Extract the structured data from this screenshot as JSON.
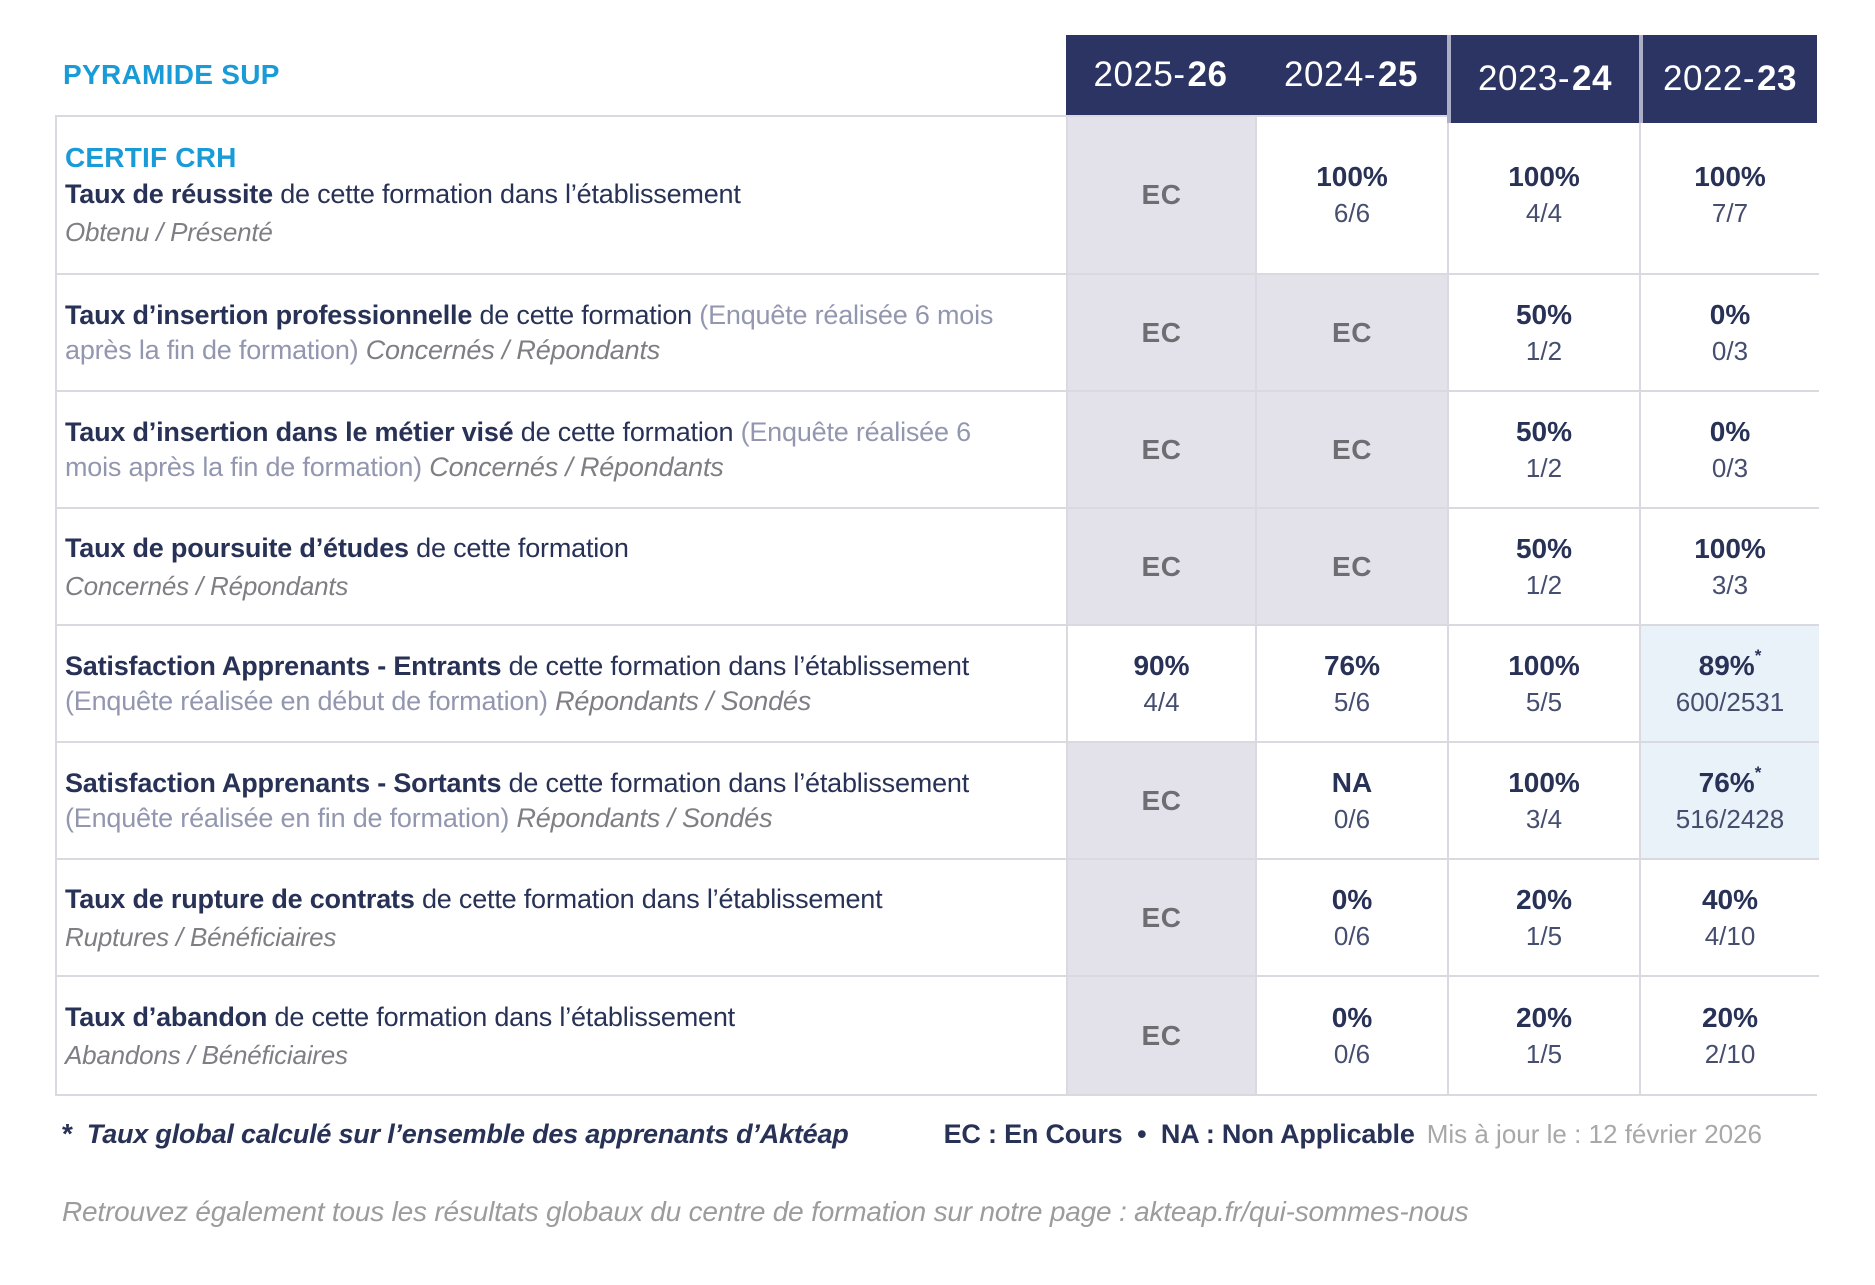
{
  "brand": "PYRAMIDE SUP",
  "years": [
    {
      "prefix": "2025-",
      "bold": "26"
    },
    {
      "prefix": "2024-",
      "bold": "25"
    },
    {
      "prefix": "2023-",
      "bold": "24"
    },
    {
      "prefix": "2022-",
      "bold": "23"
    }
  ],
  "table": {
    "rows": [
      {
        "heading": "CERTIF CRH",
        "title": "Taux de réussite",
        "desc": "de cette formation dans l’établissement",
        "sub": "Obtenu / Présenté",
        "cells": [
          {
            "type": "ec",
            "text": "EC"
          },
          {
            "type": "value",
            "pct": "100%",
            "frac": "6/6"
          },
          {
            "type": "value",
            "pct": "100%",
            "frac": "4/4"
          },
          {
            "type": "value",
            "pct": "100%",
            "frac": "7/7"
          }
        ]
      },
      {
        "title": "Taux d’insertion professionnelle",
        "desc": "de cette formation",
        "paren": "(Enquête réalisée 6 mois après la fin de formation)",
        "tail": "Concernés / Répondants",
        "cells": [
          {
            "type": "ec",
            "text": "EC"
          },
          {
            "type": "ec",
            "text": "EC"
          },
          {
            "type": "value",
            "pct": "50%",
            "frac": "1/2"
          },
          {
            "type": "value",
            "pct": "0%",
            "frac": "0/3"
          }
        ]
      },
      {
        "title": "Taux d’insertion dans le métier visé",
        "desc": "de cette formation",
        "paren": "(Enquête réalisée 6 mois après la fin de formation)",
        "tail": "Concernés / Répondants",
        "cells": [
          {
            "type": "ec",
            "text": "EC"
          },
          {
            "type": "ec",
            "text": "EC"
          },
          {
            "type": "value",
            "pct": "50%",
            "frac": "1/2"
          },
          {
            "type": "value",
            "pct": "0%",
            "frac": "0/3"
          }
        ]
      },
      {
        "title": "Taux de poursuite d’études",
        "desc": "de cette formation",
        "sub": "Concernés / Répondants",
        "cells": [
          {
            "type": "ec",
            "text": "EC"
          },
          {
            "type": "ec",
            "text": "EC"
          },
          {
            "type": "value",
            "pct": "50%",
            "frac": "1/2"
          },
          {
            "type": "value",
            "pct": "100%",
            "frac": "3/3"
          }
        ]
      },
      {
        "title": "Satisfaction Apprenants - Entrants",
        "desc": "de cette formation dans l’établissement",
        "paren": "(Enquête réalisée en début de formation)",
        "tail": "Répondants / Sondés",
        "cells": [
          {
            "type": "value",
            "pct": "90%",
            "frac": "4/4"
          },
          {
            "type": "value",
            "pct": "76%",
            "frac": "5/6"
          },
          {
            "type": "value",
            "pct": "100%",
            "frac": "5/5"
          },
          {
            "type": "value",
            "pct": "89%",
            "star": "*",
            "frac": "600/2531",
            "highlight": true
          }
        ]
      },
      {
        "title": "Satisfaction Apprenants - Sortants",
        "desc": "de cette formation dans l’établissement",
        "paren": "(Enquête réalisée en fin de formation)",
        "tail": "Répondants / Sondés",
        "cells": [
          {
            "type": "ec",
            "text": "EC"
          },
          {
            "type": "value",
            "pct": "NA",
            "frac": "0/6"
          },
          {
            "type": "value",
            "pct": "100%",
            "frac": "3/4"
          },
          {
            "type": "value",
            "pct": "76%",
            "star": "*",
            "frac": "516/2428",
            "highlight": true
          }
        ]
      },
      {
        "title": "Taux de rupture de contrats",
        "desc": "de cette formation dans l’établissement",
        "sub": "Ruptures / Bénéficiaires",
        "cells": [
          {
            "type": "ec",
            "text": "EC"
          },
          {
            "type": "value",
            "pct": "0%",
            "frac": "0/6"
          },
          {
            "type": "value",
            "pct": "20%",
            "frac": "1/5"
          },
          {
            "type": "value",
            "pct": "40%",
            "frac": "4/10"
          }
        ]
      },
      {
        "title": "Taux d’abandon",
        "desc": "de cette formation dans l’établissement",
        "sub": "Abandons / Bénéficiaires",
        "cells": [
          {
            "type": "ec",
            "text": "EC"
          },
          {
            "type": "value",
            "pct": "0%",
            "frac": "0/6"
          },
          {
            "type": "value",
            "pct": "20%",
            "frac": "1/5"
          },
          {
            "type": "value",
            "pct": "20%",
            "frac": "2/10"
          }
        ]
      }
    ]
  },
  "legend": {
    "footnote_star": "*",
    "footnote": "Taux global calculé sur l’ensemble des apprenants d’Aktéap",
    "abbreviations": "EC : En Cours  •  NA : Non Applicable",
    "updated": "Mis à jour le : 12 février 2026"
  },
  "bottom_note": "Retrouvez également tous les résultats globaux du centre de formation sur notre page : akteap.fr/qui-sommes-nous",
  "colors": {
    "navy": "#2b3462",
    "text_navy": "#283156",
    "cyan": "#199bd8",
    "ec_background": "#e3e2eb",
    "highlight_background": "#e9f2f9",
    "border": "#d9d9df"
  }
}
